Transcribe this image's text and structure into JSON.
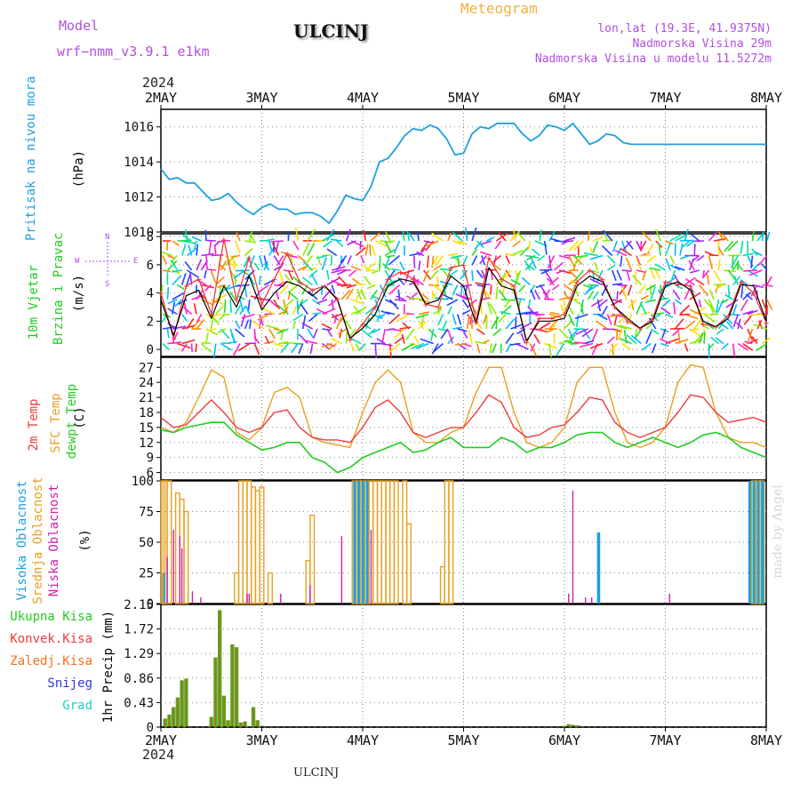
{
  "header": {
    "model_label": "Model",
    "model_name": "wrf−nmm_v3.9.1  e1km",
    "station": "ULCINJ",
    "meteogram": "Meteogram",
    "lonlat": "lon,lat (19.3E, 41.9375N)",
    "altitude": "Nadmorska Visina 29m",
    "model_altitude": "Nadmorska Visina u modelu 11.5272m",
    "year_top": "2024",
    "year_bottom": "2024",
    "footer_station": "ULCINJ",
    "watermark": "made by Angel"
  },
  "panel_labels": {
    "pressure": {
      "name": "Pritisak na nivou mora",
      "unit": "(hPa)"
    },
    "wind": {
      "name1": "10m Vjetar",
      "name2": "Brzina i Pravac",
      "unit": "(m/s)",
      "compass_n": "N",
      "compass_s": "S",
      "compass_w": "W",
      "compass_e": "E"
    },
    "temp": {
      "t2m": "2m Temp",
      "sfc": "SFC Temp",
      "dew": "dewpt Temp",
      "unit": "(C)"
    },
    "cloud": {
      "high": "Visoka Oblacnost",
      "mid": "Srednja Oblacnost",
      "low": "Niska Oblacnost",
      "unit": "(%)"
    },
    "precip": {
      "total": "Ukupna Kisa",
      "conv": "Konvek.Kisa",
      "frozen": "Zaledj.Kisa",
      "snow": "Snijeg",
      "hail": "Grad",
      "unit": "1hr Precip (mm)"
    }
  },
  "colors": {
    "pressure": "#1ea0e0",
    "t2m": "#ee3b3b",
    "sfc": "#e8a020",
    "dew": "#22cc22",
    "cloud_high": "#1ea0e0",
    "cloud_mid": "#e8a020",
    "cloud_low": "#cc22aa",
    "precip_total": "#55aa22",
    "precip_conv": "#b5651d",
    "wind_speed": "#000000",
    "wind_gust": "#ee3b3b",
    "label_green": "#22cc22",
    "label_red": "#ee3b3b",
    "label_orange": "#f07020",
    "label_blue": "#3333dd",
    "label_cyan": "#22cccc",
    "label_magenta": "#cc22aa",
    "label_purple": "#b050e0",
    "title_orange": "#f0b040"
  },
  "chart_data": {
    "type": "meteogram",
    "x_ticks": [
      "2MAY",
      "3MAY",
      "4MAY",
      "5MAY",
      "6MAY",
      "7MAY",
      "8MAY"
    ],
    "hours_total": 144,
    "pressure": {
      "ylim": [
        1010,
        1017
      ],
      "yticks": [
        "1010",
        "1012",
        "1014",
        "1016"
      ],
      "times": [
        0,
        2,
        4,
        6,
        8,
        10,
        12,
        14,
        16,
        18,
        20,
        22,
        24,
        26,
        28,
        30,
        32,
        34,
        36,
        38,
        40,
        42,
        44,
        46,
        48,
        50,
        52,
        54,
        56,
        58,
        60,
        62,
        64,
        66,
        68,
        70,
        72,
        74,
        76,
        78,
        80,
        82,
        84,
        86,
        88,
        90,
        92,
        94,
        96,
        98,
        100,
        102,
        104,
        106,
        108,
        110,
        112,
        114,
        116,
        118,
        120,
        122,
        124,
        126,
        128,
        130,
        132,
        134,
        136,
        138,
        140,
        142,
        144
      ],
      "values": [
        1013.6,
        1013.0,
        1013.1,
        1012.8,
        1012.8,
        1012.3,
        1011.8,
        1011.9,
        1012.2,
        1011.7,
        1011.3,
        1011.0,
        1011.4,
        1011.6,
        1011.3,
        1011.3,
        1011.0,
        1011.1,
        1011.1,
        1010.9,
        1010.5,
        1011.2,
        1012.1,
        1011.9,
        1011.8,
        1012.6,
        1014.0,
        1014.2,
        1014.8,
        1015.5,
        1015.9,
        1015.8,
        1016.1,
        1015.9,
        1015.3,
        1014.4,
        1014.5,
        1015.6,
        1016.0,
        1015.9,
        1016.2,
        1016.2,
        1016.2,
        1015.6,
        1015.2,
        1015.5,
        1016.1,
        1016.0,
        1015.8,
        1016.2,
        1015.6,
        1015.0,
        1015.2,
        1015.6,
        1015.5,
        1015.1,
        1015.0,
        1015.0,
        1015.0,
        1015.0,
        1015.0,
        1015.0,
        1015.0,
        1015.0,
        1015.0,
        1015.0,
        1015.0,
        1015.0,
        1015.0,
        1015.0,
        1015.0,
        1015.0,
        1015.0
      ]
    },
    "wind": {
      "ylim": [
        -0.5,
        8.2
      ],
      "yticks": [
        "0",
        "2",
        "4",
        "6",
        "8"
      ],
      "times": [
        0,
        3,
        6,
        9,
        12,
        15,
        18,
        21,
        24,
        27,
        30,
        33,
        36,
        39,
        42,
        45,
        48,
        51,
        54,
        57,
        60,
        63,
        66,
        69,
        72,
        75,
        78,
        81,
        84,
        87,
        90,
        93,
        96,
        99,
        102,
        105,
        108,
        111,
        114,
        117,
        120,
        123,
        126,
        129,
        132,
        135,
        138,
        141,
        144
      ],
      "speed": [
        3.5,
        1.0,
        3.8,
        4.2,
        2.2,
        4.5,
        3.0,
        5.2,
        2.8,
        4.0,
        4.8,
        4.5,
        3.8,
        4.5,
        3.5,
        0.8,
        1.5,
        2.5,
        4.5,
        5.0,
        4.8,
        3.2,
        3.5,
        5.2,
        4.5,
        1.8,
        5.8,
        4.5,
        4.2,
        0.6,
        2.0,
        2.0,
        2.2,
        4.5,
        5.2,
        4.8,
        3.0,
        2.2,
        1.5,
        2.0,
        4.5,
        4.8,
        4.2,
        2.0,
        1.6,
        2.2,
        4.6,
        4.5,
        2.0
      ],
      "gust": [
        4.0,
        0.8,
        4.5,
        5.0,
        2.5,
        7.8,
        3.5,
        6.5,
        3.2,
        5.0,
        6.8,
        4.8,
        4.2,
        4.5,
        3.6,
        0.7,
        1.8,
        3.0,
        5.0,
        5.5,
        5.0,
        3.2,
        3.0,
        5.8,
        6.0,
        2.0,
        6.5,
        5.0,
        4.5,
        0.5,
        2.2,
        2.2,
        2.5,
        4.8,
        5.6,
        5.0,
        3.0,
        2.0,
        1.5,
        2.2,
        4.8,
        4.6,
        4.5,
        1.8,
        1.6,
        2.4,
        4.8,
        4.0,
        1.9
      ]
    },
    "temperature": {
      "ylim": [
        4.5,
        29
      ],
      "yticks": [
        "6",
        "9",
        "12",
        "15",
        "18",
        "21",
        "24",
        "27"
      ],
      "times": [
        0,
        3,
        6,
        9,
        12,
        15,
        18,
        21,
        24,
        27,
        30,
        33,
        36,
        39,
        42,
        45,
        48,
        51,
        54,
        57,
        60,
        63,
        66,
        69,
        72,
        75,
        78,
        81,
        84,
        87,
        90,
        93,
        96,
        99,
        102,
        105,
        108,
        111,
        114,
        117,
        120,
        123,
        126,
        129,
        132,
        135,
        138,
        141,
        144
      ],
      "t2m": [
        17,
        15,
        15.5,
        18,
        20.5,
        18,
        15,
        14,
        15,
        18,
        18.5,
        15,
        13,
        12.5,
        12.5,
        12,
        15,
        19,
        20.5,
        18,
        14,
        13,
        14,
        15,
        15,
        18,
        21.5,
        20,
        15,
        13,
        13.5,
        15,
        15.5,
        18,
        21,
        20.5,
        16,
        14,
        13,
        14,
        15,
        18,
        21.5,
        21,
        18,
        16,
        16.5,
        17,
        16
      ],
      "sfc": [
        15,
        14,
        16,
        21,
        26.5,
        25,
        14,
        12.5,
        15,
        22,
        23,
        21,
        13,
        12,
        11.5,
        11,
        18,
        24,
        26.5,
        24,
        14,
        12,
        12,
        14,
        15,
        22,
        27,
        27,
        18,
        12,
        11,
        12,
        15,
        24,
        27,
        27,
        18,
        12,
        11,
        12,
        15,
        24,
        27.5,
        27,
        18,
        13,
        12,
        12,
        11
      ],
      "dew": [
        14.5,
        14,
        15,
        15.5,
        16,
        16,
        13.5,
        12,
        10.5,
        11,
        12,
        12,
        9,
        8,
        6,
        7,
        9,
        10,
        11,
        12,
        10,
        10.5,
        12,
        13,
        11,
        11,
        11,
        13,
        12,
        10,
        11,
        11,
        12,
        13.5,
        14,
        14,
        12,
        11,
        12,
        13,
        12,
        11,
        12,
        13.5,
        14,
        13,
        11,
        10,
        9
      ]
    },
    "cloud": {
      "ylim": [
        0,
        100
      ],
      "yticks": [
        "0",
        "25",
        "50",
        "75",
        "100"
      ],
      "times": [
        0.5,
        1,
        2,
        3,
        4,
        5,
        6,
        7,
        8,
        9,
        10,
        11,
        12,
        13,
        14,
        15,
        16,
        17,
        18,
        19,
        20,
        21,
        22,
        23,
        24,
        25,
        26,
        27,
        28,
        29,
        30,
        31,
        32,
        33,
        34,
        35,
        36,
        37,
        38,
        39,
        40,
        41,
        42,
        43,
        44,
        45,
        46,
        47,
        48,
        49,
        50,
        51,
        52,
        53,
        54,
        55,
        56,
        57,
        58,
        59,
        60,
        61,
        62,
        63,
        64,
        65,
        66,
        67,
        68,
        69,
        70,
        71,
        72,
        73,
        74,
        75,
        76,
        77,
        78,
        79,
        80,
        81,
        82,
        83,
        84,
        85,
        86,
        87,
        88,
        89,
        90,
        91,
        92,
        93,
        94,
        95,
        96,
        97,
        98,
        99,
        100,
        101,
        102,
        103,
        104,
        105,
        106,
        107,
        108,
        109,
        110,
        111,
        112,
        113,
        114,
        115,
        116,
        117,
        118,
        119,
        120,
        121,
        122,
        123,
        124,
        125,
        126,
        127,
        128,
        129,
        130,
        131,
        132,
        133,
        134,
        135,
        136,
        137,
        138,
        139,
        140,
        141,
        142,
        143
      ],
      "high": [
        25,
        0,
        0,
        0,
        0,
        0,
        0,
        0,
        0,
        0,
        0,
        0,
        0,
        0,
        0,
        0,
        0,
        0,
        0,
        0,
        0,
        0,
        0,
        0,
        0,
        0,
        0,
        0,
        0,
        0,
        0,
        0,
        0,
        0,
        0,
        0,
        0,
        0,
        0,
        0,
        0,
        0,
        0,
        0,
        0,
        0,
        100,
        100,
        100,
        100,
        0,
        0,
        0,
        0,
        0,
        0,
        0,
        0,
        0,
        0,
        0,
        0,
        0,
        0,
        0,
        0,
        0,
        0,
        0,
        0,
        0,
        0,
        0,
        0,
        0,
        0,
        0,
        0,
        0,
        0,
        0,
        0,
        0,
        0,
        0,
        0,
        0,
        0,
        0,
        0,
        0,
        0,
        0,
        0,
        0,
        0,
        0,
        0,
        0,
        0,
        0,
        0,
        0,
        0,
        58,
        0,
        0,
        0,
        0,
        0,
        0,
        0,
        0,
        0,
        0,
        0,
        0,
        0,
        0,
        0,
        0,
        0,
        0,
        0,
        0,
        0,
        0,
        0,
        0,
        0,
        0,
        0,
        0,
        0,
        0,
        0,
        0,
        0,
        0,
        0,
        100,
        100,
        100,
        100
      ],
      "mid": [
        100,
        100,
        100,
        0,
        90,
        85,
        75,
        0,
        0,
        0,
        0,
        0,
        0,
        0,
        0,
        0,
        0,
        0,
        25,
        100,
        100,
        100,
        95,
        92,
        95,
        0,
        25,
        0,
        0,
        0,
        0,
        0,
        0,
        0,
        0,
        35,
        72,
        0,
        0,
        0,
        0,
        0,
        0,
        0,
        0,
        0,
        100,
        100,
        100,
        100,
        100,
        100,
        100,
        100,
        100,
        100,
        100,
        0,
        100,
        65,
        0,
        0,
        0,
        0,
        0,
        0,
        0,
        30,
        100,
        100,
        0,
        0,
        0,
        0,
        0,
        0,
        0,
        0,
        0,
        0,
        0,
        0,
        0,
        0,
        0,
        0,
        0,
        0,
        0,
        0,
        0,
        0,
        0,
        0,
        0,
        0,
        0,
        0,
        0,
        0,
        0,
        0,
        0,
        0,
        0,
        0,
        0,
        0,
        0,
        0,
        0,
        0,
        0,
        0,
        0,
        0,
        0,
        0,
        0,
        0,
        0,
        0,
        0,
        0,
        0,
        0,
        0,
        0,
        0,
        0,
        0,
        0,
        0,
        0,
        0,
        0,
        0,
        0,
        0,
        0,
        0,
        100,
        100,
        100
      ],
      "low": [
        0,
        0,
        0,
        0,
        0,
        0,
        0,
        0,
        0,
        0,
        0,
        0,
        0,
        0,
        0,
        0,
        0,
        0,
        0,
        0,
        0,
        0,
        0,
        0,
        0,
        0,
        0,
        0,
        0,
        0,
        0,
        0,
        0,
        0,
        0,
        0,
        0,
        0,
        0,
        0,
        0,
        0,
        0,
        0,
        0,
        0,
        0,
        0,
        0,
        0,
        0,
        0,
        0,
        0,
        0,
        0,
        0,
        0,
        0,
        0,
        0,
        0,
        0,
        0,
        0,
        0,
        0,
        0,
        0,
        0,
        0,
        0,
        0,
        0,
        0,
        0,
        0,
        0,
        0,
        0,
        0,
        0,
        0,
        0,
        0,
        0,
        0,
        0,
        0,
        0,
        0,
        0,
        0,
        0,
        0,
        0,
        0,
        0,
        0,
        0,
        0,
        0,
        0,
        0,
        0,
        0,
        0,
        0,
        0,
        0,
        0,
        0,
        0,
        0,
        0,
        0,
        0,
        0,
        0,
        0,
        0,
        0,
        0,
        0,
        0,
        0,
        0,
        0,
        0,
        0,
        0,
        0,
        0,
        0,
        0,
        0,
        0,
        0,
        0,
        0,
        0,
        0,
        0,
        0
      ],
      "low_spikes": [
        [
          1.5,
          38
        ],
        [
          3.0,
          60
        ],
        [
          4.5,
          55
        ],
        [
          5.0,
          45
        ],
        [
          7.5,
          10
        ],
        [
          9.5,
          5
        ],
        [
          20.5,
          8
        ],
        [
          21.0,
          8
        ],
        [
          28.5,
          8
        ],
        [
          35.5,
          15
        ],
        [
          43.0,
          55
        ],
        [
          50.0,
          60
        ],
        [
          97.0,
          8
        ],
        [
          98.0,
          92
        ],
        [
          101.0,
          5
        ],
        [
          102.5,
          5
        ],
        [
          121.0,
          8
        ]
      ]
    },
    "precip": {
      "ylim": [
        0,
        2.15
      ],
      "yticks": [
        "0",
        "0.43",
        "0.86",
        "1.29",
        "1.72",
        "2.15"
      ],
      "times": [
        1,
        2,
        3,
        4,
        5,
        6,
        12,
        13,
        14,
        15,
        16,
        17,
        18,
        19,
        20,
        22,
        23,
        24,
        96,
        97,
        98,
        99
      ],
      "total": [
        0.15,
        0.22,
        0.35,
        0.52,
        0.82,
        0.85,
        0.18,
        1.22,
        2.05,
        0.55,
        0.12,
        1.45,
        1.4,
        0.08,
        0.1,
        0.35,
        0.12,
        0.02,
        0.02,
        0.05,
        0.04,
        0.03
      ],
      "conv": [
        0.15,
        0.22,
        0.35,
        0.52,
        0.82,
        0.85,
        0.18,
        1.22,
        2.05,
        0.55,
        0.12,
        1.45,
        1.4,
        0.08,
        0.1,
        0.35,
        0.12,
        0.02,
        0.02,
        0.05,
        0.04,
        0.03
      ]
    }
  }
}
